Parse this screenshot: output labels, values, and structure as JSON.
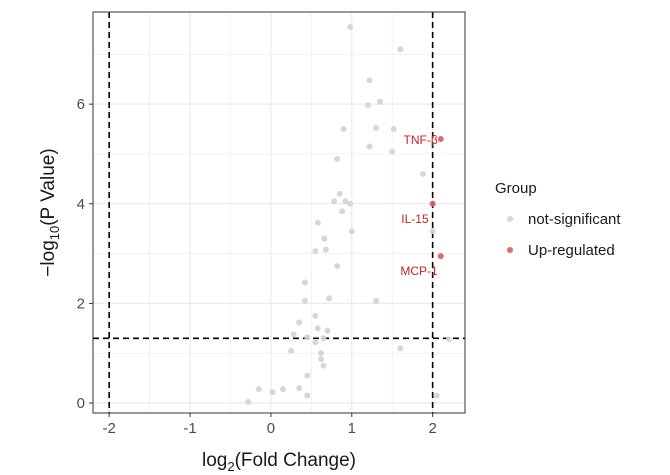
{
  "chart_data": {
    "type": "scatter",
    "title": "",
    "xlabel": {
      "base": "log",
      "sub": "2",
      "rest": "(Fold Change)"
    },
    "ylabel": {
      "base": "−log",
      "sub": "10",
      "rest": "(P Value)"
    },
    "xlim": [
      -2.2,
      2.4
    ],
    "ylim": [
      -0.2,
      7.85
    ],
    "x_ticks": [
      -2,
      -1,
      0,
      1,
      2
    ],
    "x_tick_labels": [
      "-2",
      "-1",
      "0",
      "1",
      "2"
    ],
    "y_ticks": [
      0,
      2,
      4,
      6
    ],
    "y_tick_labels": [
      "0",
      "2",
      "4",
      "6"
    ],
    "grid": true,
    "thresholds": {
      "x": [
        -2,
        2
      ],
      "y": 1.3
    },
    "legend": {
      "title": "Group",
      "position": "right",
      "entries": [
        {
          "label": "not-significant",
          "color": "#d3d3d3"
        },
        {
          "label": "Up-regulated",
          "color": "#e05a5a"
        }
      ]
    },
    "series": [
      {
        "name": "not-significant",
        "color": "#d3d3d3",
        "points": [
          [
            0.98,
            7.55
          ],
          [
            1.6,
            7.1
          ],
          [
            1.22,
            6.48
          ],
          [
            1.35,
            6.05
          ],
          [
            1.2,
            5.98
          ],
          [
            0.9,
            5.5
          ],
          [
            1.3,
            5.52
          ],
          [
            1.52,
            5.5
          ],
          [
            1.22,
            5.15
          ],
          [
            1.5,
            5.05
          ],
          [
            0.82,
            4.9
          ],
          [
            1.88,
            4.6
          ],
          [
            0.85,
            4.2
          ],
          [
            0.92,
            4.05
          ],
          [
            0.78,
            4.05
          ],
          [
            0.98,
            4.0
          ],
          [
            0.88,
            3.85
          ],
          [
            0.58,
            3.62
          ],
          [
            1.0,
            3.45
          ],
          [
            2.0,
            3.45
          ],
          [
            0.66,
            3.3
          ],
          [
            0.68,
            3.08
          ],
          [
            0.55,
            3.05
          ],
          [
            0.82,
            2.75
          ],
          [
            0.42,
            2.42
          ],
          [
            0.42,
            2.05
          ],
          [
            0.72,
            2.1
          ],
          [
            1.3,
            2.05
          ],
          [
            0.55,
            1.75
          ],
          [
            0.35,
            1.62
          ],
          [
            0.58,
            1.5
          ],
          [
            0.7,
            1.45
          ],
          [
            0.28,
            1.38
          ],
          [
            0.45,
            1.32
          ],
          [
            0.65,
            1.3
          ],
          [
            0.55,
            1.22
          ],
          [
            0.25,
            1.05
          ],
          [
            1.6,
            1.1
          ],
          [
            0.62,
            1.0
          ],
          [
            0.62,
            0.88
          ],
          [
            0.65,
            0.75
          ],
          [
            0.45,
            0.55
          ],
          [
            0.35,
            0.3
          ],
          [
            0.15,
            0.28
          ],
          [
            -0.15,
            0.28
          ],
          [
            0.02,
            0.22
          ],
          [
            0.45,
            0.15
          ],
          [
            2.05,
            0.15
          ],
          [
            -0.28,
            0.02
          ],
          [
            2.2,
            1.28
          ]
        ]
      },
      {
        "name": "Up-regulated",
        "color": "#e05a5a",
        "points": [
          [
            2.1,
            5.3
          ],
          [
            2.0,
            4.0
          ],
          [
            2.1,
            2.95
          ]
        ]
      }
    ],
    "annotations": [
      {
        "text": "TNF-β",
        "x": 2.1,
        "y": 5.3,
        "color": "#cc2222"
      },
      {
        "text": "IL-15",
        "x": 2.0,
        "y": 4.0,
        "color": "#cc2222"
      },
      {
        "text": "MCP-1",
        "x": 2.1,
        "y": 2.95,
        "color": "#cc2222"
      }
    ],
    "colors": {
      "panel_bg": "#ffffff",
      "gridline": "#ebebeb",
      "axis_line": "#333333",
      "threshold_line": "#000000"
    }
  }
}
